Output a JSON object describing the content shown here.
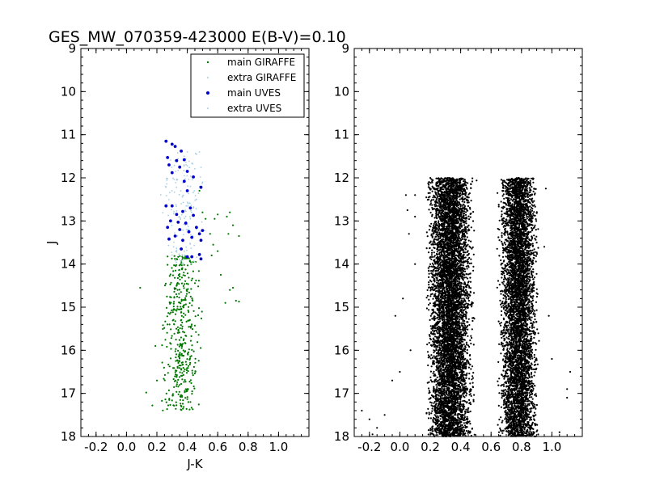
{
  "figure": {
    "title": "GES_MW_070359-423000 E(B-V)=0.10"
  },
  "chart_data": [
    {
      "type": "scatter",
      "panel": "left",
      "xlabel": "J-K",
      "ylabel": "J",
      "xlim": [
        -0.3,
        1.2
      ],
      "ylim": [
        18,
        9
      ],
      "y_inverted": true,
      "x_ticks": [
        "-0.2",
        "0.0",
        "0.2",
        "0.4",
        "0.6",
        "0.8",
        "1.0"
      ],
      "x_tick_values": [
        -0.2,
        0.0,
        0.2,
        0.4,
        0.6,
        0.8,
        1.0
      ],
      "y_ticks": [
        "9",
        "10",
        "11",
        "12",
        "13",
        "14",
        "15",
        "16",
        "17",
        "18"
      ],
      "y_tick_values": [
        9,
        10,
        11,
        12,
        13,
        14,
        15,
        16,
        17,
        18
      ],
      "grid": false,
      "legend_placement": "top-right",
      "series": [
        {
          "name": "main GIRAFFE",
          "color": "#007700",
          "marker": "small-dot",
          "distribution": {
            "x_range": [
              0.22,
              0.5
            ],
            "y_range": [
              13.8,
              17.4
            ],
            "count": 420
          },
          "points": [
            [
              0.09,
              14.55
            ],
            [
              0.13,
              16.98
            ],
            [
              0.17,
              17.28
            ],
            [
              0.19,
              15.9
            ],
            [
              0.2,
              16.7
            ],
            [
              0.72,
              14.85
            ],
            [
              0.74,
              14.87
            ],
            [
              0.7,
              14.55
            ],
            [
              0.68,
              14.6
            ],
            [
              0.62,
              14.25
            ],
            [
              0.6,
              13.7
            ],
            [
              0.57,
              13.55
            ],
            [
              0.7,
              13.1
            ],
            [
              0.74,
              13.35
            ],
            [
              0.6,
              12.85
            ],
            [
              0.66,
              12.9
            ],
            [
              0.68,
              12.8
            ],
            [
              0.58,
              12.95
            ],
            [
              0.52,
              12.95
            ],
            [
              0.55,
              13.3
            ],
            [
              0.5,
              12.8
            ],
            [
              0.48,
              12.3
            ],
            [
              0.56,
              13.8
            ],
            [
              0.65,
              14.9
            ],
            [
              0.67,
              13.3
            ]
          ]
        },
        {
          "name": "extra GIRAFFE",
          "color": "#a6cee3",
          "marker": "tiny-dot",
          "distribution": {
            "x_range": [
              0.22,
              0.52
            ],
            "y_range": [
              11.4,
              14.0
            ],
            "count": 150
          },
          "points": [
            [
              0.48,
              11.4
            ],
            [
              0.46,
              11.45
            ],
            [
              0.4,
              11.4
            ],
            [
              0.32,
              11.6
            ],
            [
              0.38,
              11.5
            ],
            [
              0.42,
              12.2
            ],
            [
              0.46,
              12.5
            ],
            [
              0.5,
              12.1
            ]
          ]
        },
        {
          "name": "main UVES",
          "color": "#0000cc",
          "marker": "dot",
          "points": [
            [
              0.26,
              11.15
            ],
            [
              0.3,
              11.22
            ],
            [
              0.32,
              11.27
            ],
            [
              0.36,
              11.38
            ],
            [
              0.27,
              11.53
            ],
            [
              0.33,
              11.6
            ],
            [
              0.38,
              11.58
            ],
            [
              0.28,
              11.7
            ],
            [
              0.35,
              11.75
            ],
            [
              0.3,
              11.88
            ],
            [
              0.4,
              11.85
            ],
            [
              0.44,
              11.98
            ],
            [
              0.38,
              12.08
            ],
            [
              0.49,
              12.22
            ],
            [
              0.4,
              12.3
            ],
            [
              0.42,
              12.7
            ],
            [
              0.26,
              12.65
            ],
            [
              0.3,
              12.65
            ],
            [
              0.33,
              12.85
            ],
            [
              0.37,
              12.78
            ],
            [
              0.44,
              12.87
            ],
            [
              0.29,
              13.0
            ],
            [
              0.34,
              13.03
            ],
            [
              0.39,
              13.05
            ],
            [
              0.27,
              13.15
            ],
            [
              0.35,
              13.2
            ],
            [
              0.41,
              13.25
            ],
            [
              0.46,
              13.15
            ],
            [
              0.48,
              13.3
            ],
            [
              0.5,
              13.22
            ],
            [
              0.28,
              13.42
            ],
            [
              0.32,
              13.35
            ],
            [
              0.37,
              13.45
            ],
            [
              0.43,
              13.38
            ],
            [
              0.49,
              13.45
            ],
            [
              0.36,
              13.65
            ],
            [
              0.4,
              13.83
            ],
            [
              0.43,
              13.83
            ],
            [
              0.48,
              13.78
            ],
            [
              0.49,
              13.88
            ]
          ]
        },
        {
          "name": "extra UVES",
          "color": "#a6cee3",
          "marker": "tiny-dot",
          "points": [
            [
              0.3,
              12.3
            ],
            [
              0.36,
              12.6
            ],
            [
              0.42,
              12.95
            ],
            [
              0.31,
              13.6
            ],
            [
              0.38,
              13.7
            ]
          ]
        }
      ]
    },
    {
      "type": "scatter",
      "panel": "right",
      "xlabel": "",
      "ylabel": "",
      "xlim": [
        -0.3,
        1.2
      ],
      "ylim": [
        18,
        9
      ],
      "y_inverted": true,
      "x_ticks": [
        "-0.2",
        "0.0",
        "0.2",
        "0.4",
        "0.6",
        "0.8",
        "1.0"
      ],
      "x_tick_values": [
        -0.2,
        0.0,
        0.2,
        0.4,
        0.6,
        0.8,
        1.0
      ],
      "y_ticks": [
        "9",
        "10",
        "11",
        "12",
        "13",
        "14",
        "15",
        "16",
        "17",
        "18"
      ],
      "y_tick_values": [
        9,
        10,
        11,
        12,
        13,
        14,
        15,
        16,
        17,
        18
      ],
      "grid": false,
      "series": [
        {
          "color": "#000000",
          "marker": "small-dot",
          "distribution": {
            "x_range": [
              0.12,
              0.98
            ],
            "y_range": [
              12.0,
              18.0
            ],
            "count": 12000
          },
          "points": [
            [
              -0.25,
              17.4
            ],
            [
              -0.2,
              17.6
            ],
            [
              -0.18,
              17.95
            ],
            [
              -0.1,
              17.5
            ],
            [
              -0.05,
              16.7
            ],
            [
              0.0,
              16.5
            ],
            [
              0.02,
              14.8
            ],
            [
              -0.03,
              15.2
            ],
            [
              0.05,
              12.75
            ],
            [
              0.04,
              12.4
            ],
            [
              0.06,
              13.3
            ],
            [
              0.1,
              12.9
            ],
            [
              0.1,
              12.4
            ],
            [
              1.12,
              16.5
            ],
            [
              1.1,
              16.9
            ],
            [
              1.1,
              17.1
            ],
            [
              1.05,
              17.9
            ],
            [
              1.0,
              16.2
            ],
            [
              0.98,
              15.2
            ],
            [
              0.96,
              12.25
            ],
            [
              0.95,
              13.6
            ],
            [
              0.1,
              14.0
            ],
            [
              0.07,
              16.0
            ],
            [
              -0.15,
              17.8
            ]
          ]
        }
      ]
    }
  ]
}
